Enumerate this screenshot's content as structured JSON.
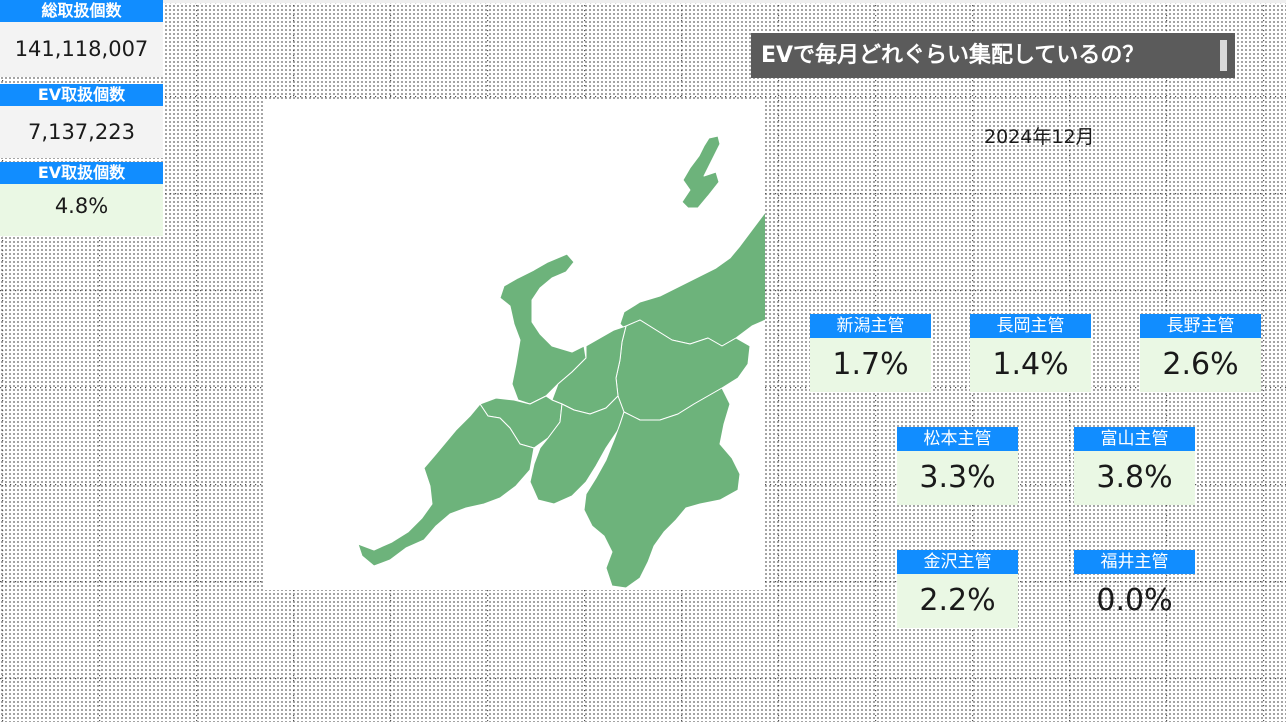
{
  "kpis": {
    "total_label": "総取扱個数",
    "total_value": "141,118,007",
    "ev_label": "EV取扱個数",
    "ev_value": "7,137,223",
    "ev_ratio_label": "EV取扱個数",
    "ev_ratio_value": "4.8%"
  },
  "title": "EVで毎月どれぐらい集配しているの？",
  "period": "2024年12月",
  "map": {
    "fill_color": "#6db37b",
    "border_color": "#ffffff"
  },
  "branches": [
    {
      "label": "新潟主管",
      "value": "1.7%"
    },
    {
      "label": "長岡主管",
      "value": "1.4%"
    },
    {
      "label": "長野主管",
      "value": "2.6%"
    },
    {
      "label": "松本主管",
      "value": "3.3%"
    },
    {
      "label": "富山主管",
      "value": "3.8%"
    },
    {
      "label": "金沢主管",
      "value": "2.2%"
    },
    {
      "label": "福井主管",
      "value": "0.0%"
    }
  ],
  "colors": {
    "accent": "#118dff",
    "value_bg": "#eaf8e4",
    "title_bg": "#5b5b5b"
  }
}
